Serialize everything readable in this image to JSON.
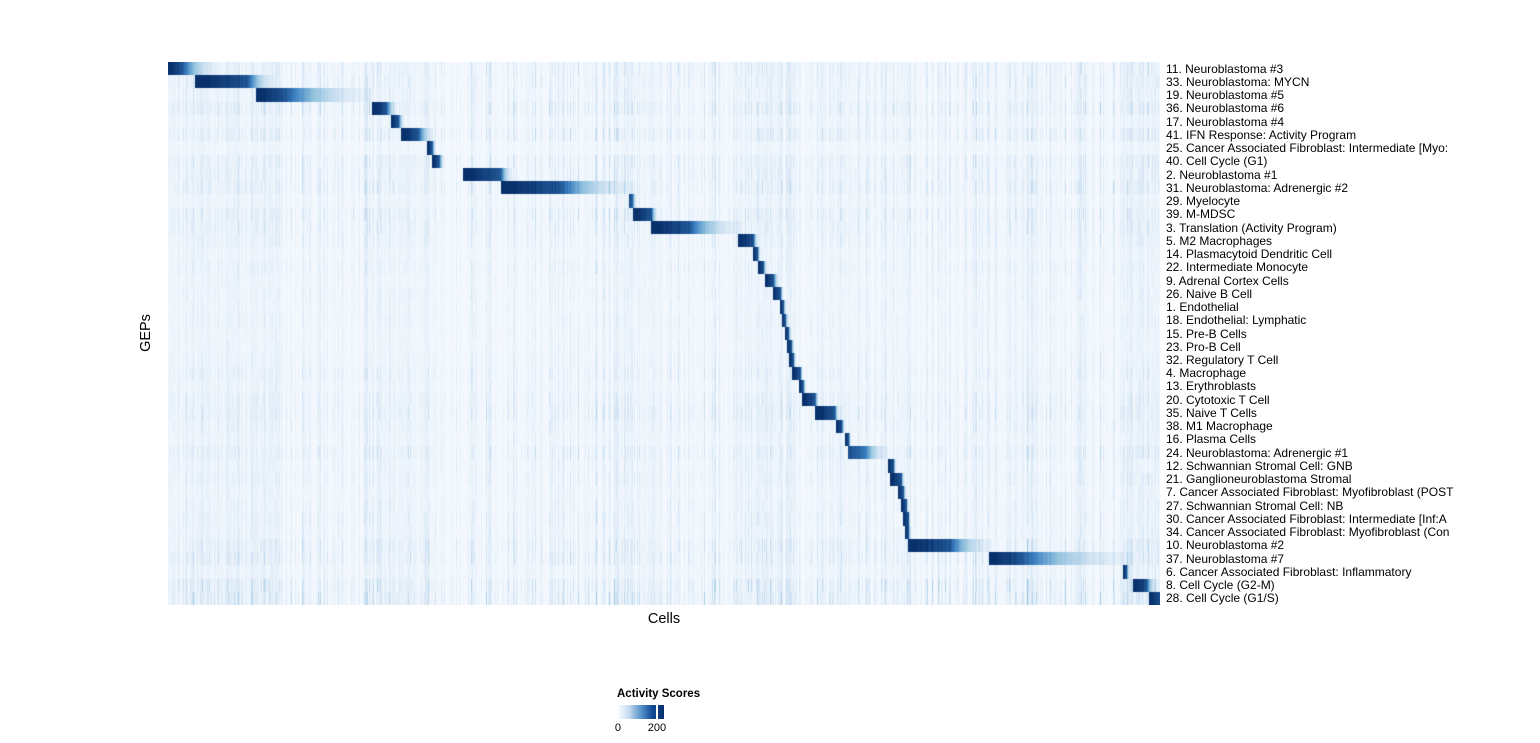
{
  "axes": {
    "x_label": "Cells",
    "y_label": "GEPs"
  },
  "legend": {
    "title": "Activity Scores",
    "ticks": [
      {
        "label": "0",
        "pos": 0.02
      },
      {
        "label": "200",
        "pos": 0.85
      }
    ]
  },
  "chart_data": {
    "type": "heatmap",
    "title": "",
    "xlabel": "Cells",
    "ylabel": "GEPs",
    "x_ticks": "none (individual cells, unlabeled)",
    "colorbar_title": "Activity Scores",
    "colorbar_ticks": [
      0,
      200
    ],
    "value_range": [
      0,
      235
    ],
    "colormap_stops": [
      "#f7fbff",
      "#d2e3f3",
      "#94c4df",
      "#3a7fc1",
      "#08306b"
    ],
    "legend_gradient_stops": [
      "#fdfeff",
      "#c7dcf0",
      "#5b97ce",
      "#114a94",
      "#08306b"
    ],
    "description": "Cells (columns) ordered by assigned GEP produce a diagonal band of high activity; block positions are fractions of the x-axis [start, dark_end, fade_end], peak is relative activity (1.0 ~ 235).",
    "rows": [
      {
        "label": "11. Neuroblastoma #3",
        "block": [
          0.0,
          0.014,
          0.05
        ],
        "peak": 1.0,
        "noise": 0.5
      },
      {
        "label": "33. Neuroblastoma: MYCN",
        "block": [
          0.027,
          0.08,
          0.108
        ],
        "peak": 1.0,
        "noise": 0.5
      },
      {
        "label": "19. Neuroblastoma #5",
        "block": [
          0.088,
          0.118,
          0.205
        ],
        "peak": 1.0,
        "noise": 0.42
      },
      {
        "label": "36. Neuroblastoma #6",
        "block": [
          0.205,
          0.22,
          0.23
        ],
        "peak": 1.0,
        "noise": 0.62
      },
      {
        "label": "17. Neuroblastoma #4",
        "block": [
          0.224,
          0.232,
          0.238
        ],
        "peak": 1.0,
        "noise": 0.35
      },
      {
        "label": "41. IFN Response: Activity Program",
        "block": [
          0.234,
          0.252,
          0.268
        ],
        "peak": 1.0,
        "noise": 0.58
      },
      {
        "label": "25. Cancer Associated Fibroblast: Intermediate [Myo:",
        "block": [
          0.261,
          0.266,
          0.27
        ],
        "peak": 1.0,
        "noise": 0.25
      },
      {
        "label": "40. Cell Cycle (G1)",
        "block": [
          0.266,
          0.273,
          0.278
        ],
        "peak": 1.0,
        "noise": 0.55
      },
      {
        "label": "2. Neuroblastoma #1",
        "block": [
          0.297,
          0.335,
          0.347
        ],
        "peak": 1.0,
        "noise": 0.5
      },
      {
        "label": "31. Neuroblastoma: Adrenergic #2",
        "block": [
          0.335,
          0.395,
          0.468
        ],
        "peak": 1.0,
        "noise": 0.58
      },
      {
        "label": "29. Myelocyte",
        "block": [
          0.464,
          0.468,
          0.472
        ],
        "peak": 0.92,
        "noise": 0.35
      },
      {
        "label": "39. M-MDSC",
        "block": [
          0.468,
          0.487,
          0.493
        ],
        "peak": 1.0,
        "noise": 0.55
      },
      {
        "label": "3. Translation (Activity Program)",
        "block": [
          0.486,
          0.525,
          0.578
        ],
        "peak": 1.0,
        "noise": 0.5
      },
      {
        "label": "5. M2 Macrophages",
        "block": [
          0.574,
          0.59,
          0.594
        ],
        "peak": 1.0,
        "noise": 0.45
      },
      {
        "label": "14. Plasmacytoid Dendritic Cell",
        "block": [
          0.589,
          0.594,
          0.597
        ],
        "peak": 1.0,
        "noise": 0.3
      },
      {
        "label": "22. Intermediate Monocyte",
        "block": [
          0.594,
          0.6,
          0.603
        ],
        "peak": 1.0,
        "noise": 0.4
      },
      {
        "label": "9. Adrenal Cortex Cells",
        "block": [
          0.601,
          0.61,
          0.616
        ],
        "peak": 1.0,
        "noise": 0.3
      },
      {
        "label": "26. Naive B Cell",
        "block": [
          0.609,
          0.617,
          0.62
        ],
        "peak": 1.0,
        "noise": 0.35
      },
      {
        "label": "1. Endothelial",
        "block": [
          0.616,
          0.62,
          0.623
        ],
        "peak": 1.0,
        "noise": 0.3
      },
      {
        "label": "18. Endothelial: Lymphatic",
        "block": [
          0.618,
          0.622,
          0.625
        ],
        "peak": 1.0,
        "noise": 0.35
      },
      {
        "label": "15. Pre-B Cells",
        "block": [
          0.621,
          0.625,
          0.628
        ],
        "peak": 1.0,
        "noise": 0.3
      },
      {
        "label": "23. Pro-B Cell",
        "block": [
          0.623,
          0.628,
          0.631
        ],
        "peak": 1.0,
        "noise": 0.3
      },
      {
        "label": "32. Regulatory T Cell",
        "block": [
          0.626,
          0.63,
          0.633
        ],
        "peak": 1.0,
        "noise": 0.35
      },
      {
        "label": "4. Macrophage",
        "block": [
          0.629,
          0.637,
          0.64
        ],
        "peak": 1.0,
        "noise": 0.45
      },
      {
        "label": "13. Erythroblasts",
        "block": [
          0.636,
          0.64,
          0.643
        ],
        "peak": 1.0,
        "noise": 0.35
      },
      {
        "label": "20. Cytotoxic T Cell",
        "block": [
          0.639,
          0.652,
          0.656
        ],
        "peak": 1.0,
        "noise": 0.5
      },
      {
        "label": "35. Naive T Cells",
        "block": [
          0.652,
          0.672,
          0.676
        ],
        "peak": 1.0,
        "noise": 0.55
      },
      {
        "label": "38. M1 Macrophage",
        "block": [
          0.673,
          0.679,
          0.682
        ],
        "peak": 1.0,
        "noise": 0.45
      },
      {
        "label": "16. Plasma Cells",
        "block": [
          0.682,
          0.686,
          0.688
        ],
        "peak": 1.0,
        "noise": 0.35
      },
      {
        "label": "24. Neuroblastoma: Adrenergic #1",
        "block": [
          0.685,
          0.702,
          0.725
        ],
        "peak": 0.88,
        "noise": 0.55
      },
      {
        "label": "12. Schwannian Stromal Cell: GNB",
        "block": [
          0.725,
          0.731,
          0.734
        ],
        "peak": 1.0,
        "noise": 0.4
      },
      {
        "label": "21. Ganglioneuroblastoma Stromal",
        "block": [
          0.727,
          0.739,
          0.742
        ],
        "peak": 1.0,
        "noise": 0.45
      },
      {
        "label": "7. Cancer Associated Fibroblast: Myofibroblast (POST",
        "block": [
          0.735,
          0.741,
          0.744
        ],
        "peak": 1.0,
        "noise": 0.35
      },
      {
        "label": "27. Schwannian Stromal Cell: NB",
        "block": [
          0.738,
          0.744,
          0.746
        ],
        "peak": 1.0,
        "noise": 0.4
      },
      {
        "label": "30. Cancer Associated Fibroblast: Intermediate [Inf:A",
        "block": [
          0.74,
          0.746,
          0.748
        ],
        "peak": 1.0,
        "noise": 0.45
      },
      {
        "label": "34. Cancer Associated Fibroblast: Myofibroblast (Con",
        "block": [
          0.742,
          0.746,
          0.749
        ],
        "peak": 1.0,
        "noise": 0.4
      },
      {
        "label": "10. Neuroblastoma #2",
        "block": [
          0.745,
          0.788,
          0.83
        ],
        "peak": 1.0,
        "noise": 0.58
      },
      {
        "label": "37. Neuroblastoma #7",
        "block": [
          0.827,
          0.859,
          0.973
        ],
        "peak": 1.0,
        "noise": 0.62
      },
      {
        "label": "6. Cancer Associated Fibroblast: Inflammatory",
        "block": [
          0.962,
          0.966,
          0.969
        ],
        "peak": 1.0,
        "noise": 0.4
      },
      {
        "label": "8. Cell Cycle (G2-M)",
        "block": [
          0.972,
          0.986,
          0.996
        ],
        "peak": 1.0,
        "noise": 0.7
      },
      {
        "label": "28. Cell Cycle (G1/S)",
        "block": [
          0.988,
          0.999,
          1.0
        ],
        "peak": 1.0,
        "noise": 0.75
      }
    ],
    "column_streak_clusters": [
      {
        "start": 0.0,
        "end": 0.115,
        "strength": 0.3
      },
      {
        "start": 0.205,
        "end": 0.266,
        "strength": 0.24
      },
      {
        "start": 0.455,
        "end": 0.5,
        "strength": 0.33
      },
      {
        "start": 0.575,
        "end": 0.635,
        "strength": 0.33
      },
      {
        "start": 0.655,
        "end": 0.7,
        "strength": 0.22
      },
      {
        "start": 0.728,
        "end": 0.752,
        "strength": 0.3
      },
      {
        "start": 0.84,
        "end": 0.878,
        "strength": 0.25
      },
      {
        "start": 0.962,
        "end": 1.0,
        "strength": 0.42
      }
    ]
  }
}
